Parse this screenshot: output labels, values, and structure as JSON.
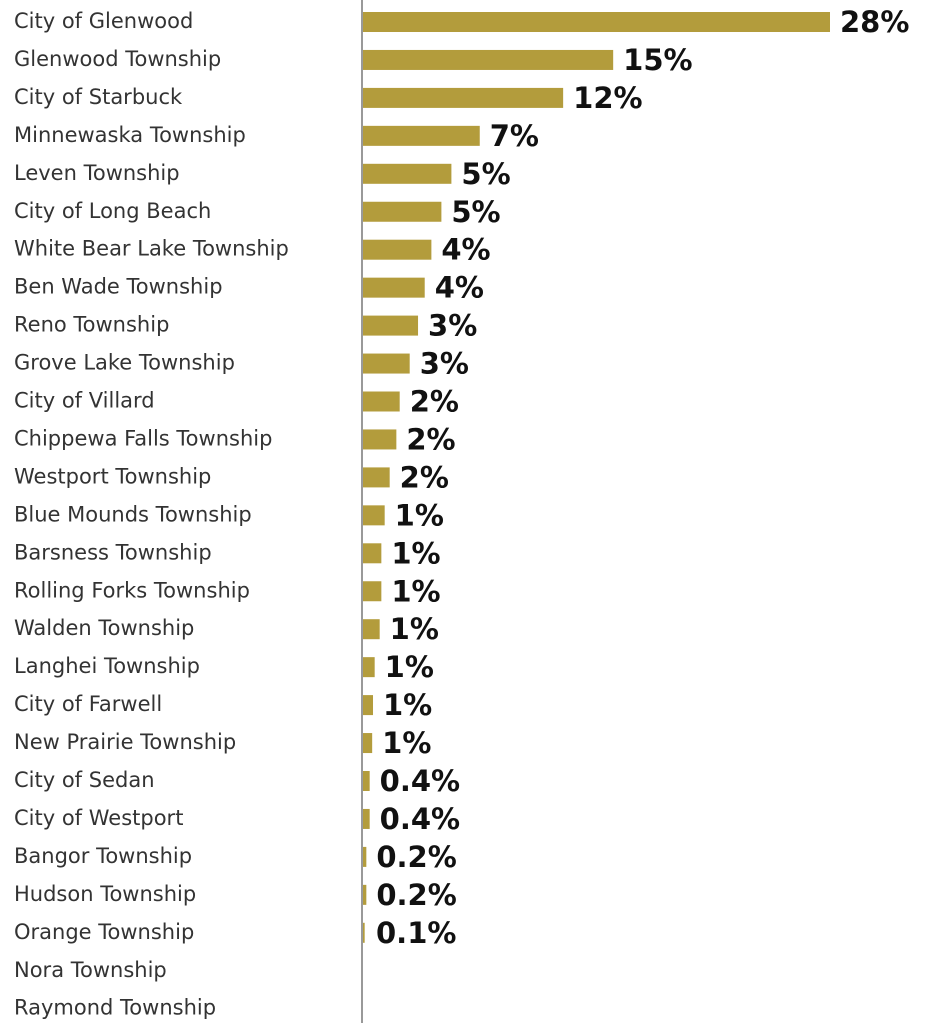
{
  "chart_data": {
    "type": "hbar",
    "color": "#b39c3c",
    "categories": [
      "City of Glenwood",
      "Glenwood Township",
      "City of Starbuck",
      "Minnewaska Township",
      "Leven Township",
      "City of Long Beach",
      "White Bear Lake Township",
      "Ben Wade Township",
      "Reno Township",
      "Grove Lake Township",
      "City of Villard",
      "Chippewa Falls Township",
      "Westport Township",
      "Blue Mounds Township",
      "Barsness Township",
      "Rolling Forks Township",
      "Walden Township",
      "Langhei Township",
      "City of Farwell",
      "New Prairie Township",
      "City of Sedan",
      "City of Westport",
      "Bangor Township",
      "Hudson Township",
      "Orange Township",
      "Nora Township",
      "Raymond Township"
    ],
    "values": [
      28,
      15,
      12,
      7,
      5.3,
      4.7,
      4.1,
      3.7,
      3.3,
      2.8,
      2.2,
      2.0,
      1.6,
      1.3,
      1.1,
      1.1,
      1.0,
      0.7,
      0.6,
      0.55,
      0.4,
      0.4,
      0.2,
      0.2,
      0.1,
      null,
      null
    ],
    "value_labels": [
      "28%",
      "15%",
      "12%",
      "7%",
      "5%",
      "5%",
      "4%",
      "4%",
      "3%",
      "3%",
      "2%",
      "2%",
      "2%",
      "1%",
      "1%",
      "1%",
      "1%",
      "1%",
      "1%",
      "1%",
      "0.4%",
      "0.4%",
      "0.2%",
      "0.2%",
      "0.1%",
      null,
      null
    ]
  }
}
